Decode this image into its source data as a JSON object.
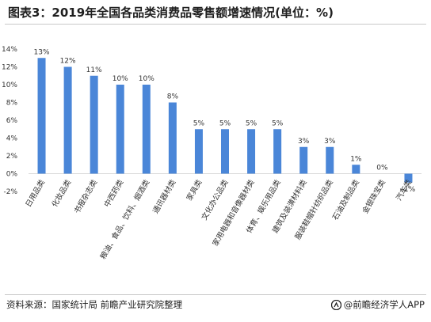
{
  "title": "图表3：2019年全国各品类消费品零售额增速情况(单位：%)",
  "footer": {
    "source": "资料来源：国家统计局 前瞻产业研究院整理",
    "brand": "@前瞻经济学人APP",
    "brand_icon": "qianzhan-logo-icon"
  },
  "colors": {
    "bar": "#4a86d8",
    "grid": "#d9d9d9",
    "text": "#333333"
  },
  "chart_data": {
    "type": "bar",
    "categories": [
      "日用品类",
      "化妆品类",
      "书报杂志类",
      "中西药类",
      "粮油、食品、饮料、烟酒类",
      "通讯器材类",
      "家具类",
      "文化办公品类",
      "家用电器和音像器材类",
      "体育、娱乐用品类",
      "建筑及装潢材料类",
      "服装鞋帽针纺织品类",
      "石油及制品类",
      "金银珠宝类",
      "汽车类"
    ],
    "values": [
      13,
      12,
      11,
      10,
      10,
      8,
      5,
      5,
      5,
      5,
      3,
      3,
      1,
      0,
      -1
    ],
    "value_labels": [
      "13%",
      "12%",
      "11%",
      "10%",
      "10%",
      "8%",
      "5%",
      "5%",
      "5%",
      "5%",
      "3%",
      "3%",
      "1%",
      "0%",
      "-1%"
    ],
    "yticks": [
      -2,
      0,
      2,
      4,
      6,
      8,
      10,
      12,
      14
    ],
    "ytick_labels": [
      "-2%",
      "0%",
      "2%",
      "4%",
      "6%",
      "8%",
      "10%",
      "12%",
      "14%"
    ],
    "ylim": [
      -2,
      14
    ],
    "grid": false,
    "xlabel": "",
    "ylabel": ""
  }
}
